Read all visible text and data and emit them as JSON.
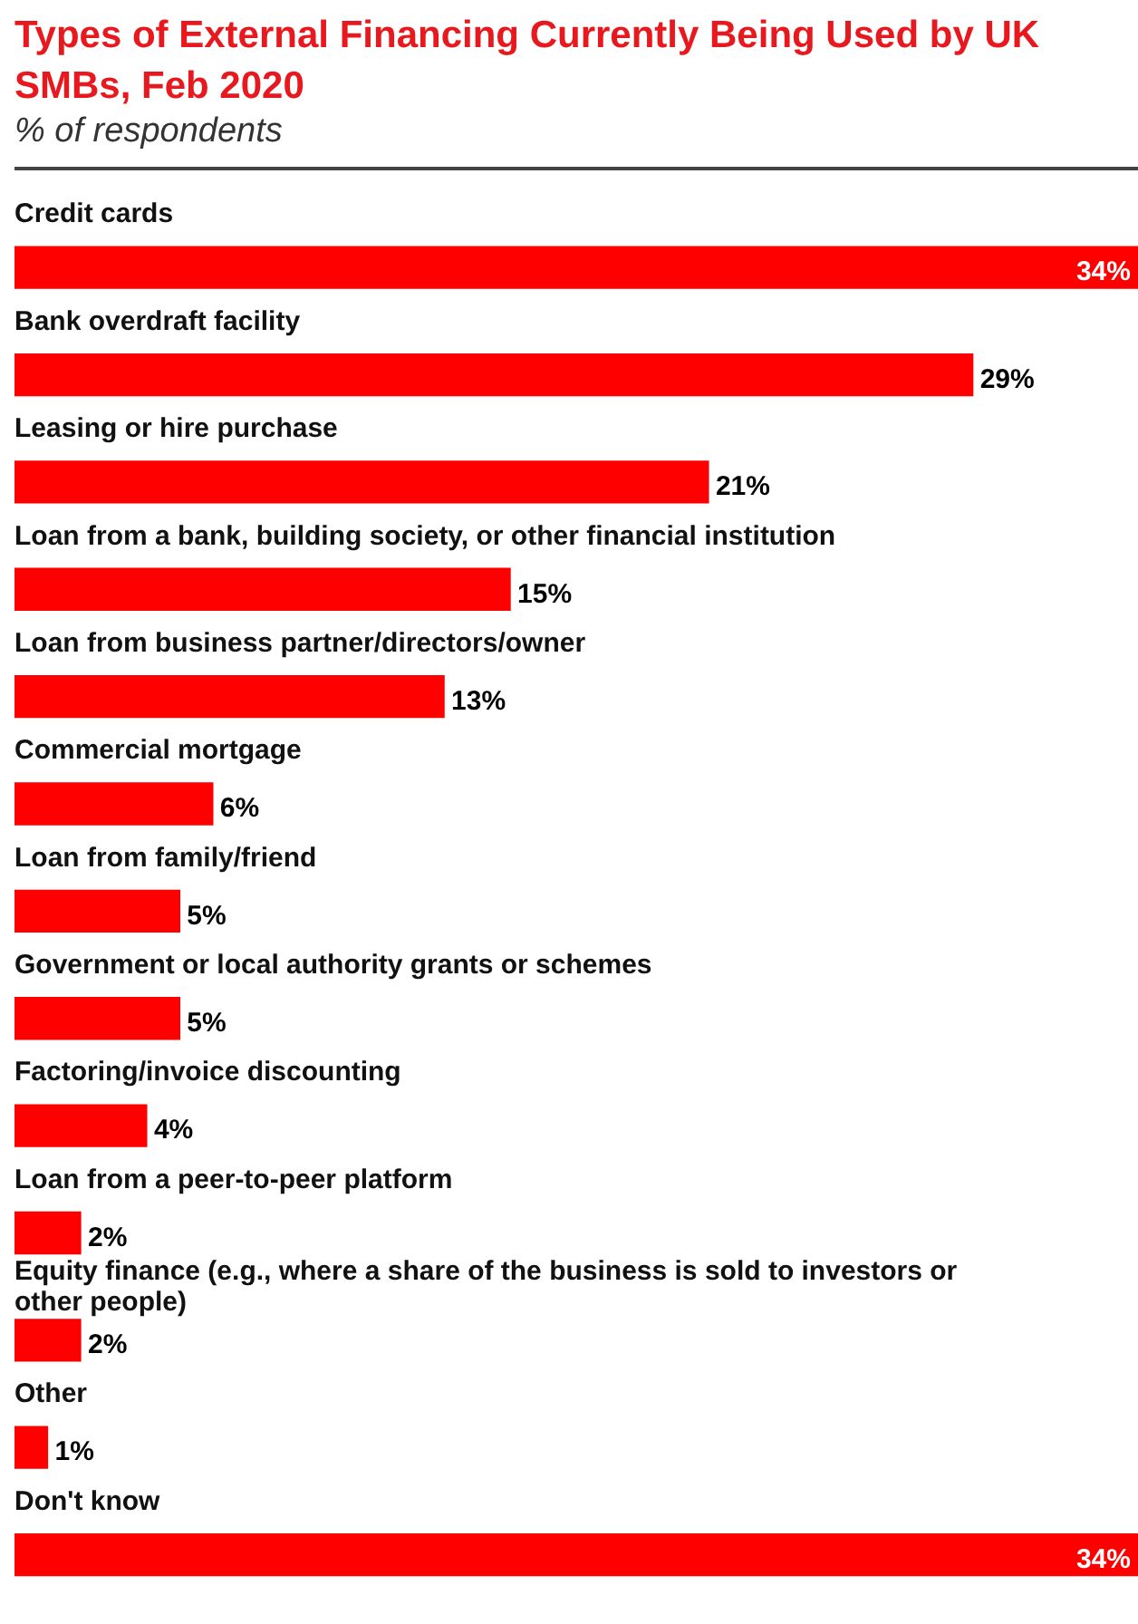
{
  "chart_data": {
    "type": "bar",
    "orientation": "horizontal",
    "title": "Types of External Financing Currently Being Used by UK SMBs, Feb 2020",
    "subtitle": "% of respondents",
    "categories": [
      "Credit cards",
      "Bank overdraft facility",
      "Leasing or hire purchase",
      "Loan from a bank, building society, or other financial institution",
      "Loan from business partner/directors/owner",
      "Commercial mortgage",
      "Loan from family/friend",
      "Government or local authority grants or schemes",
      "Factoring/invoice discounting",
      "Loan from a peer-to-peer platform",
      "Equity finance (e.g., where a share of the business is sold to investors or other people)",
      "Other",
      "Don't know"
    ],
    "values": [
      34,
      29,
      21,
      15,
      13,
      6,
      5,
      5,
      4,
      2,
      2,
      1,
      34
    ],
    "value_labels": [
      "34%",
      "29%",
      "21%",
      "15%",
      "13%",
      "6%",
      "5%",
      "5%",
      "4%",
      "2%",
      "2%",
      "1%",
      "34%"
    ],
    "color": "#ff0000",
    "legend": false
  }
}
